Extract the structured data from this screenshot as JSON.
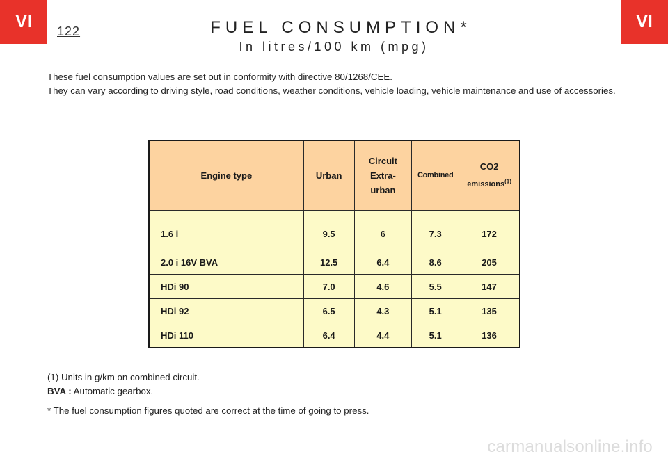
{
  "header": {
    "section_tab_left": "VI",
    "section_tab_right": "VI",
    "page_number": "122",
    "title": "FUEL CONSUMPTION*",
    "subtitle": "In litres/100 km (mpg)",
    "tab_color": "#e8322a"
  },
  "intro": {
    "line1": "These fuel consumption values are set out in conformity with directive 80/1268/CEE.",
    "line2": "They can vary according to driving style, road conditions, weather conditions, vehicle loading, vehicle maintenance and use of accessories."
  },
  "table": {
    "header_color": "#fdd3a0",
    "body_color": "#fdfac8",
    "headers": {
      "engine": "Engine type",
      "urban": "Urban",
      "extra_1": "Circuit",
      "extra_2": "Extra-",
      "extra_3": "urban",
      "combined": "Combined",
      "co2": "CO2",
      "co2_sub": "emissions",
      "co2_note": "(1)"
    },
    "rows": [
      {
        "engine": "1.6 i",
        "urban": "9.5",
        "extra": "6",
        "combined": "7.3",
        "co2": "172"
      },
      {
        "engine": "2.0 i 16V   BVA",
        "urban": "12.5",
        "extra": "6.4",
        "combined": "8.6",
        "co2": "205"
      },
      {
        "engine": "HDi 90",
        "urban": "7.0",
        "extra": "4.6",
        "combined": "5.5",
        "co2": "147"
      },
      {
        "engine": "HDi 92",
        "urban": "6.5",
        "extra": "4.3",
        "combined": "5.1",
        "co2": "135"
      },
      {
        "engine": "HDi 110",
        "urban": "6.4",
        "extra": "4.4",
        "combined": "5.1",
        "co2": "136"
      }
    ]
  },
  "footnotes": {
    "note1": "(1) Units in g/km on combined circuit.",
    "bva_label": "BVA :",
    "bva_text": " Automatic gearbox.",
    "press": "* The fuel consumption figures quoted are correct at the time of going to press."
  },
  "watermark": "carmanualsonline.info"
}
